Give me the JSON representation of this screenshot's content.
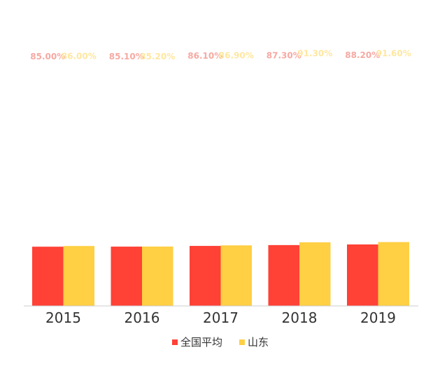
{
  "chart_data": {
    "type": "bar",
    "categories": [
      "2015",
      "2016",
      "2017",
      "2018",
      "2019"
    ],
    "series": [
      {
        "name": "全国平均",
        "values": [
          85.0,
          85.1,
          86.1,
          87.3,
          88.2
        ],
        "labels": [
          "85.00%",
          "85.10%",
          "86.10%",
          "87.30%",
          "88.20%"
        ],
        "color": "#ff4136",
        "label_color": "#f7a9a3"
      },
      {
        "name": "山东",
        "values": [
          86.0,
          85.2,
          86.9,
          91.3,
          91.6
        ],
        "labels": [
          "86.00%",
          "85.20%",
          "86.90%",
          "91.30%",
          "91.60%"
        ],
        "color": "#ffcf44",
        "label_color": "#ffe7a0"
      }
    ],
    "legend_position": "bottom",
    "grid": false
  }
}
